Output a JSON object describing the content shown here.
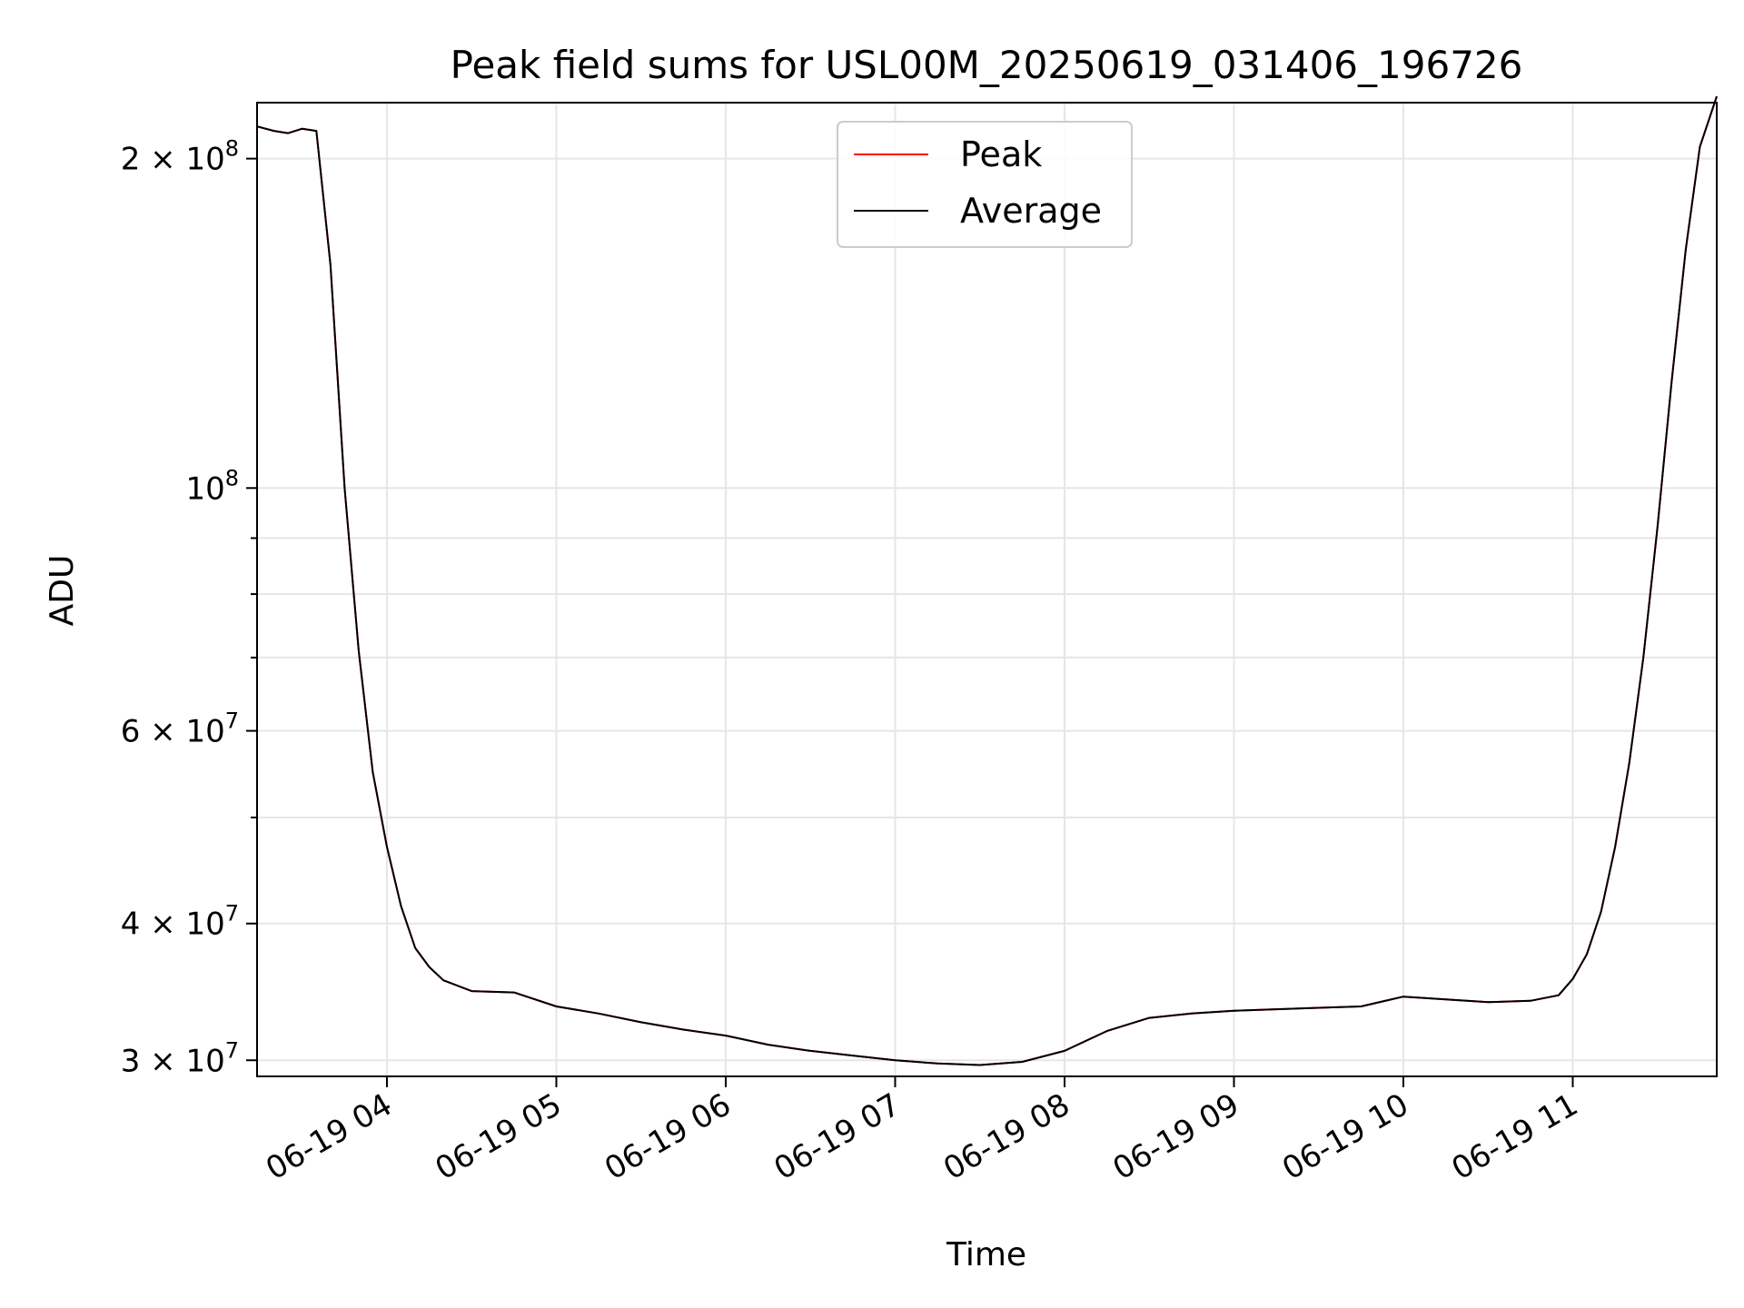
{
  "chart_data": {
    "type": "line",
    "title": "Peak field sums for USL00M_20250619_031406_196726",
    "xlabel": "Time",
    "ylabel": "ADU",
    "yscale": "log",
    "xlim": [
      "2025-06-19T03:14:00",
      "2025-06-19T11:51:00"
    ],
    "ylim": [
      29000000,
      225000000
    ],
    "grid": true,
    "legend_position": "top-center",
    "x_ticks": [
      "06-19 04",
      "06-19 05",
      "06-19 06",
      "06-19 07",
      "06-19 08",
      "06-19 09",
      "06-19 10",
      "06-19 11"
    ],
    "y_major_ticks": [
      {
        "value": 30000000,
        "label_base": "3 × 10",
        "label_exp": "7"
      },
      {
        "value": 40000000,
        "label_base": "4 × 10",
        "label_exp": "7"
      },
      {
        "value": 60000000,
        "label_base": "6 × 10",
        "label_exp": "7"
      },
      {
        "value": 100000000,
        "label_base": "10",
        "label_exp": "8"
      },
      {
        "value": 200000000,
        "label_base": "2 × 10",
        "label_exp": "8"
      }
    ],
    "y_minor_ticks": [
      50000000,
      70000000,
      80000000,
      90000000
    ],
    "x": [
      "03:14",
      "03:20",
      "03:25",
      "03:30",
      "03:35",
      "03:40",
      "03:45",
      "03:50",
      "03:55",
      "04:00",
      "04:05",
      "04:10",
      "04:15",
      "04:20",
      "04:30",
      "04:45",
      "05:00",
      "05:15",
      "05:30",
      "05:45",
      "06:00",
      "06:15",
      "06:30",
      "06:45",
      "07:00",
      "07:15",
      "07:30",
      "07:45",
      "08:00",
      "08:15",
      "08:30",
      "08:45",
      "09:00",
      "09:15",
      "09:30",
      "09:45",
      "10:00",
      "10:15",
      "10:30",
      "10:45",
      "10:55",
      "11:00",
      "11:05",
      "11:10",
      "11:15",
      "11:20",
      "11:25",
      "11:30",
      "11:35",
      "11:40",
      "11:45",
      "11:51"
    ],
    "series": [
      {
        "name": "Peak",
        "color": "#ff0000",
        "values": [
          214000000,
          212000000,
          211000000,
          213000000,
          212000000,
          160000000,
          100000000,
          71000000,
          55000000,
          47000000,
          41500000,
          38000000,
          36500000,
          35500000,
          34700000,
          34600000,
          33600000,
          33100000,
          32500000,
          32000000,
          31600000,
          31000000,
          30600000,
          30300000,
          30000000,
          29800000,
          29700000,
          29900000,
          30600000,
          31900000,
          32800000,
          33100000,
          33300000,
          33400000,
          33500000,
          33600000,
          34300000,
          34100000,
          33900000,
          34000000,
          34400000,
          35600000,
          37500000,
          41000000,
          47000000,
          56000000,
          70000000,
          92000000,
          125000000,
          165000000,
          205000000,
          228000000
        ]
      },
      {
        "name": "Average",
        "color": "#000000",
        "values": [
          214000000,
          212000000,
          211000000,
          213000000,
          212000000,
          160000000,
          100000000,
          71000000,
          55000000,
          47000000,
          41500000,
          38000000,
          36500000,
          35500000,
          34700000,
          34600000,
          33600000,
          33100000,
          32500000,
          32000000,
          31600000,
          31000000,
          30600000,
          30300000,
          30000000,
          29800000,
          29700000,
          29900000,
          30600000,
          31900000,
          32800000,
          33100000,
          33300000,
          33400000,
          33500000,
          33600000,
          34300000,
          34100000,
          33900000,
          34000000,
          34400000,
          35600000,
          37500000,
          41000000,
          47000000,
          56000000,
          70000000,
          92000000,
          125000000,
          165000000,
          205000000,
          228000000
        ]
      }
    ]
  }
}
